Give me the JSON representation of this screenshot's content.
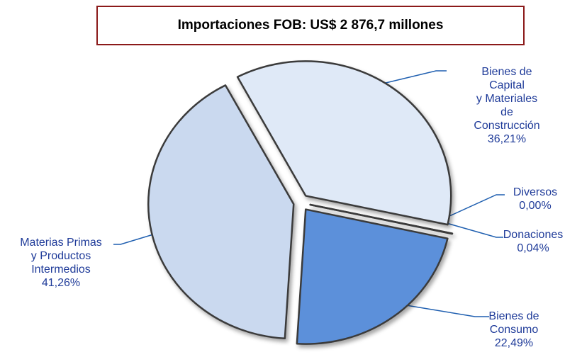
{
  "chart_data": {
    "type": "pie",
    "title": "Importaciones FOB: US$ 2 876,7 millones",
    "categories": [
      "Bienes de Capital\ny Materiales de\nConstrucción",
      "Diversos",
      "Donaciones",
      "Bienes de\nConsumo",
      "Materias Primas\ny Productos\nIntermedios"
    ],
    "values": [
      36.21,
      0.0,
      0.04,
      22.49,
      41.26
    ],
    "value_labels": [
      "36,21%",
      "0,00%",
      "0,04%",
      "22,49%",
      "41,26%"
    ],
    "colors": [
      "#dfe9f7",
      "#c8d8ef",
      "#c8d8ef",
      "#5b90da",
      "#cad9ef"
    ]
  }
}
